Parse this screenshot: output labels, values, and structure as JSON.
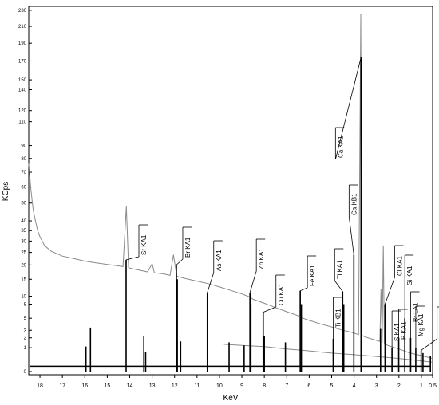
{
  "chart_data": {
    "type": "line",
    "xlabel": "KeV",
    "ylabel": "KCps",
    "x_axis_reversed": true,
    "xlim": [
      18.5,
      0.5
    ],
    "y_scale": "sqrt",
    "ylim": [
      0,
      235
    ],
    "x_ticks": [
      18,
      17,
      16,
      15,
      14,
      13,
      12,
      11,
      10,
      9,
      8,
      7,
      6,
      5,
      4,
      3,
      2,
      1,
      0.5
    ],
    "y_ticks": [
      0,
      1,
      2,
      3,
      5,
      8,
      10,
      15,
      20,
      25,
      30,
      35,
      40,
      50,
      60,
      70,
      80,
      90,
      110,
      120,
      140,
      150,
      170,
      190,
      210,
      230
    ],
    "grid": false,
    "series": [
      {
        "role": "measured-spectrum",
        "color": "#8a8a8a",
        "points": [
          [
            18.5,
            76
          ],
          [
            18.4,
            58
          ],
          [
            18.3,
            46
          ],
          [
            18.2,
            40
          ],
          [
            18.1,
            35
          ],
          [
            18.0,
            32
          ],
          [
            17.8,
            28
          ],
          [
            17.5,
            25.5
          ],
          [
            17.0,
            23.5
          ],
          [
            16.5,
            22.5
          ],
          [
            16.0,
            21.5
          ],
          [
            15.5,
            20.8
          ],
          [
            15.0,
            20.2
          ],
          [
            14.6,
            19.8
          ],
          [
            14.3,
            19.4
          ],
          [
            14.15,
            48
          ],
          [
            14.05,
            19.0
          ],
          [
            13.8,
            18.5
          ],
          [
            13.5,
            18.0
          ],
          [
            13.2,
            17.5
          ],
          [
            13.0,
            20.5
          ],
          [
            12.9,
            17.2
          ],
          [
            12.5,
            16.8
          ],
          [
            12.2,
            16.3
          ],
          [
            12.05,
            24.0
          ],
          [
            11.9,
            16.0
          ],
          [
            11.5,
            15.2
          ],
          [
            11.0,
            14.4
          ],
          [
            10.5,
            13.6
          ],
          [
            10.0,
            12.6
          ],
          [
            9.5,
            11.6
          ],
          [
            9.0,
            10.6
          ],
          [
            8.65,
            9.8
          ],
          [
            8.5,
            9.2
          ],
          [
            8.0,
            8.2
          ],
          [
            7.5,
            7.2
          ],
          [
            7.0,
            6.3
          ],
          [
            6.5,
            5.5
          ],
          [
            6.4,
            5.2
          ],
          [
            6.0,
            4.6
          ],
          [
            5.5,
            4.0
          ],
          [
            5.0,
            3.5
          ],
          [
            4.5,
            3.0
          ],
          [
            4.1,
            2.7
          ],
          [
            4.0,
            2.6
          ],
          [
            3.8,
            2.4
          ],
          [
            3.7,
            225
          ],
          [
            3.65,
            2.3
          ],
          [
            3.5,
            2.1
          ],
          [
            3.0,
            1.7
          ],
          [
            2.85,
            1.6
          ],
          [
            2.8,
            12.0
          ],
          [
            2.75,
            1.5
          ],
          [
            2.7,
            28.0
          ],
          [
            2.65,
            1.4
          ],
          [
            2.5,
            1.2
          ],
          [
            2.0,
            0.9
          ],
          [
            1.5,
            0.6
          ],
          [
            1.0,
            0.45
          ],
          [
            0.5,
            0.3
          ]
        ]
      },
      {
        "role": "background-fit",
        "color": "#8a8a8a",
        "points": [
          [
            9.8,
            1.3
          ],
          [
            9.0,
            1.2
          ],
          [
            8.0,
            1.1
          ],
          [
            7.0,
            0.9
          ],
          [
            6.0,
            0.75
          ],
          [
            5.0,
            0.6
          ],
          [
            4.0,
            0.5
          ],
          [
            3.0,
            0.4
          ],
          [
            2.0,
            0.3
          ],
          [
            1.0,
            0.2
          ],
          [
            0.5,
            0.15
          ]
        ]
      },
      {
        "role": "fitted-peaks",
        "color": "#000000",
        "points": [
          [
            15.95,
            1.1
          ],
          [
            15.75,
            3.4
          ],
          [
            14.16,
            22.0
          ],
          [
            13.37,
            2.2
          ],
          [
            13.29,
            0.7
          ],
          [
            11.92,
            20.0
          ],
          [
            11.88,
            15.0
          ],
          [
            11.73,
            1.6
          ],
          [
            10.54,
            11.0
          ],
          [
            9.57,
            1.5
          ],
          [
            8.9,
            1.2
          ],
          [
            8.64,
            11.0
          ],
          [
            8.6,
            8.0
          ],
          [
            8.05,
            6.2
          ],
          [
            8.0,
            2.2
          ],
          [
            7.06,
            1.5
          ],
          [
            6.4,
            11.5
          ],
          [
            6.35,
            8.0
          ],
          [
            4.93,
            1.9
          ],
          [
            4.51,
            11.3
          ],
          [
            4.46,
            8.0
          ],
          [
            4.01,
            24.0
          ],
          [
            3.69,
            174.0
          ],
          [
            2.82,
            3.2
          ],
          [
            2.62,
            8.0
          ],
          [
            2.31,
            1.0
          ],
          [
            2.01,
            2.0
          ],
          [
            1.74,
            5.0
          ],
          [
            1.48,
            2.0
          ],
          [
            1.25,
            1.0
          ],
          [
            1.01,
            0.8
          ],
          [
            0.93,
            0.6
          ],
          [
            0.6,
            0.45
          ]
        ]
      }
    ],
    "annotations": [
      {
        "label": "Sr KA1",
        "x": 14.16,
        "y": 22.0
      },
      {
        "label": "Br KA1",
        "x": 11.92,
        "y": 20.0
      },
      {
        "label": "As KA1",
        "x": 10.54,
        "y": 11.0
      },
      {
        "label": "Zn KA1",
        "x": 8.64,
        "y": 11.0
      },
      {
        "label": "Cu KA1",
        "x": 8.05,
        "y": 6.2
      },
      {
        "label": "Fe KA1",
        "x": 6.4,
        "y": 11.5
      },
      {
        "label": "Ti KB1",
        "x": 4.93,
        "y": 1.9
      },
      {
        "label": "Ti KA1",
        "x": 4.51,
        "y": 11.3
      },
      {
        "label": "Ca KB1",
        "x": 4.01,
        "y": 24.0
      },
      {
        "label": "Ca KA1",
        "x": 3.69,
        "y": 174.0
      },
      {
        "label": "Cl KA1",
        "x": 2.62,
        "y": 8.0
      },
      {
        "label": "S  KA1",
        "x": 2.31,
        "y": 1.0
      },
      {
        "label": "P  KA1",
        "x": 2.01,
        "y": 2.0
      },
      {
        "label": "Si KA1",
        "x": 1.74,
        "y": 5.0
      },
      {
        "label": "Br LA1",
        "x": 1.48,
        "y": 2.0
      },
      {
        "label": "Mg KA1",
        "x": 1.25,
        "y": 1.0
      },
      {
        "label": "Zn LA1",
        "x": 1.01,
        "y": 0.8
      }
    ]
  }
}
